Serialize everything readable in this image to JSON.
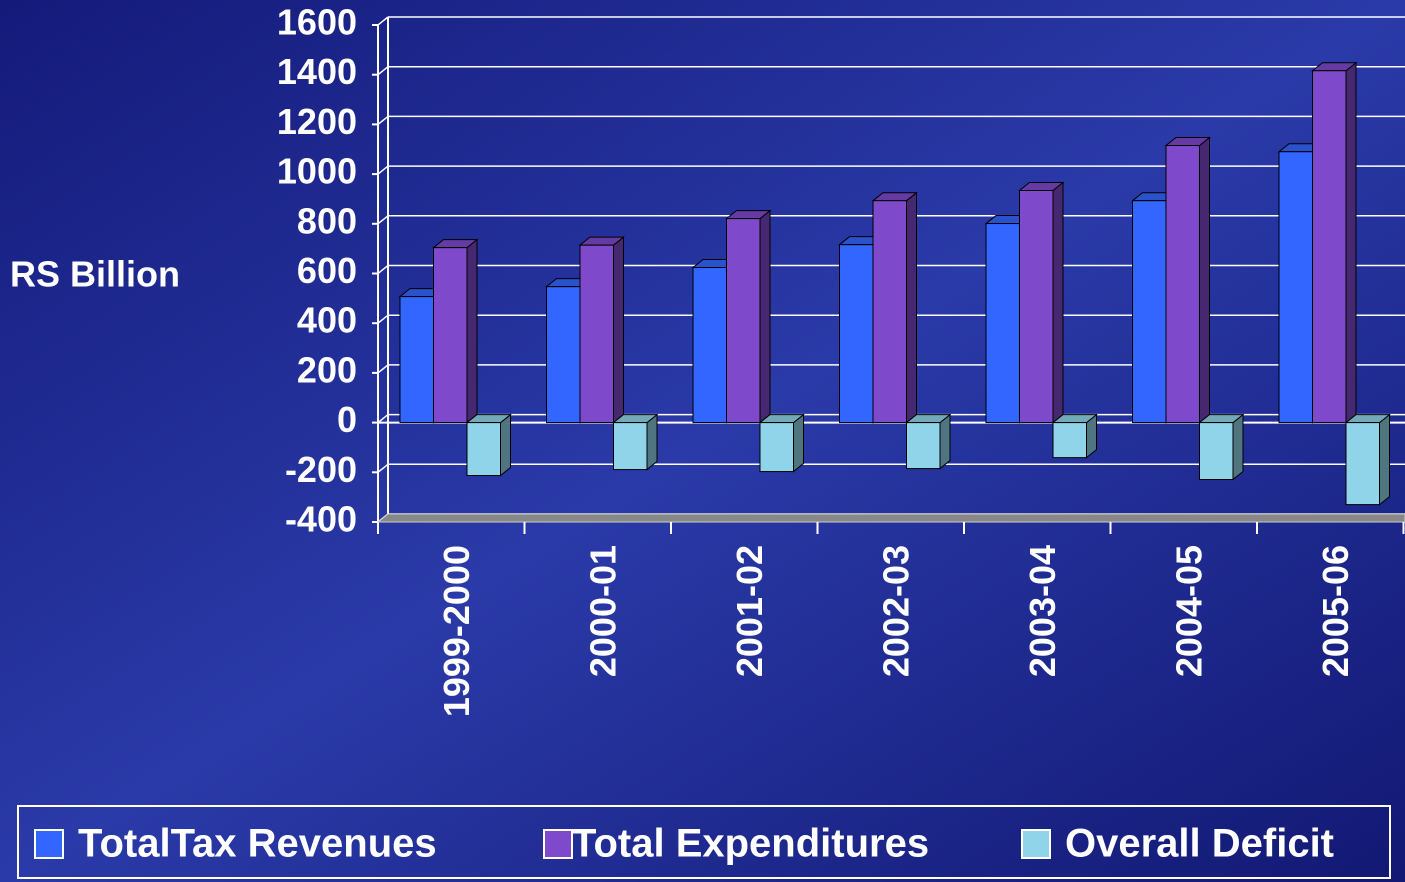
{
  "chart_data": {
    "type": "bar3d",
    "y_label": "RS Billion",
    "categories": [
      "1999-2000",
      "2000-01",
      "2001-02",
      "2002-03",
      "2003-04",
      "2004-05",
      "2005-06"
    ],
    "series": [
      {
        "name": "TotalTax Revenues",
        "color": "#3366ff",
        "values": [
          507,
          547,
          624,
          716,
          801,
          893,
          1090
        ]
      },
      {
        "name": "Total Expenditures",
        "color": "#7f49cc",
        "values": [
          704,
          714,
          821,
          893,
          934,
          1115,
          1416
        ]
      },
      {
        "name": "Overall Deficit",
        "color": "#8fd4e8",
        "values": [
          -213,
          -189,
          -197,
          -185,
          -141,
          -229,
          -330
        ]
      }
    ],
    "ylim": [
      -400,
      1600
    ],
    "yticks": [
      -400,
      -200,
      0,
      200,
      400,
      600,
      800,
      1000,
      1200,
      1400,
      1600
    ],
    "grid": true,
    "legend": "bottom"
  }
}
